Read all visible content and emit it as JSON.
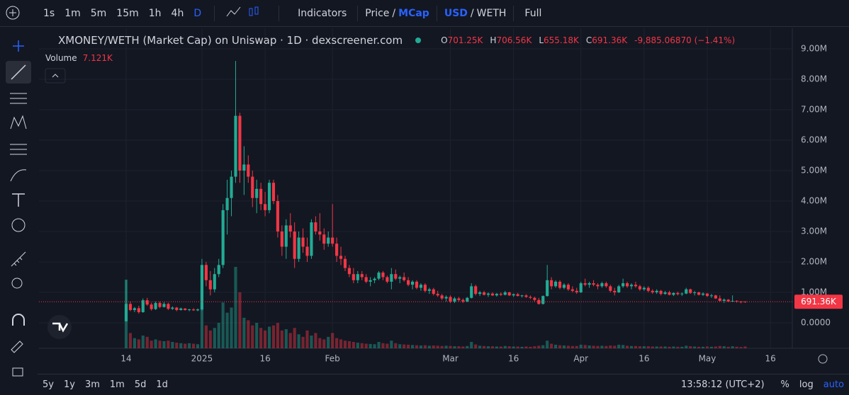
{
  "toolbar": {
    "intervals": [
      "1s",
      "1m",
      "5m",
      "15m",
      "1h",
      "4h",
      "D"
    ],
    "indicators": "Indicators",
    "price_toggle": [
      "Price",
      "/",
      "MCap"
    ],
    "currency_toggle": [
      "USD",
      "/",
      "WETH"
    ],
    "full": "Full"
  },
  "header": {
    "title": "XMONEY/WETH (Market Cap) on Uniswap · 1D · dexscreener.com",
    "ohlc": [
      {
        "k": "O",
        "v": "701.25K"
      },
      {
        "k": "H",
        "v": "706.56K"
      },
      {
        "k": "L",
        "v": "655.18K"
      },
      {
        "k": "C",
        "v": "691.36K"
      }
    ],
    "change": "-9,885.06870 (−1.41%)",
    "volume_label": "Volume",
    "volume_value": "7.121K",
    "price_tag": "691.36K"
  },
  "chart_data": {
    "type": "candlestick",
    "up_color": "#22ab94",
    "down_color": "#f23645",
    "grid": true,
    "xlim": [
      -20.7,
      158.2
    ],
    "xticks": [
      {
        "value": 0,
        "label": "14"
      },
      {
        "value": 18,
        "label": "2025"
      },
      {
        "value": 33,
        "label": "16"
      },
      {
        "value": 49,
        "label": "Feb"
      },
      {
        "value": 77,
        "label": "Mar"
      },
      {
        "value": 92,
        "label": "16"
      },
      {
        "value": 108,
        "label": "Apr"
      },
      {
        "value": 123,
        "label": "16"
      },
      {
        "value": 138,
        "label": "May"
      },
      {
        "value": 153,
        "label": "16"
      }
    ],
    "ylim": [
      -837000,
      9674000
    ],
    "yticks": [
      {
        "value": 0,
        "label": "0.0000"
      },
      {
        "value": 1000000,
        "label": "1.00M"
      },
      {
        "value": 2000000,
        "label": "2.00M"
      },
      {
        "value": 3000000,
        "label": "3.00M"
      },
      {
        "value": 4000000,
        "label": "4.00M"
      },
      {
        "value": 5000000,
        "label": "5.00M"
      },
      {
        "value": 6000000,
        "label": "6.00M"
      },
      {
        "value": 7000000,
        "label": "7.00M"
      },
      {
        "value": 8000000,
        "label": "8.00M"
      },
      {
        "value": 9000000,
        "label": "9.00M"
      }
    ],
    "ohlc": [
      [
        50000,
        1400000,
        40000,
        620000
      ],
      [
        620000,
        700000,
        380000,
        420000
      ],
      [
        420000,
        520000,
        350000,
        480000
      ],
      [
        480000,
        560000,
        300000,
        350000
      ],
      [
        350000,
        800000,
        330000,
        740000
      ],
      [
        740000,
        820000,
        560000,
        600000
      ],
      [
        600000,
        660000,
        400000,
        450000
      ],
      [
        450000,
        700000,
        420000,
        650000
      ],
      [
        650000,
        700000,
        480000,
        520000
      ],
      [
        520000,
        680000,
        500000,
        620000
      ],
      [
        620000,
        660000,
        420000,
        460000
      ],
      [
        460000,
        540000,
        420000,
        500000
      ],
      [
        500000,
        520000,
        380000,
        420000
      ],
      [
        420000,
        500000,
        400000,
        470000
      ],
      [
        470000,
        480000,
        400000,
        420000
      ],
      [
        420000,
        460000,
        380000,
        440000
      ],
      [
        440000,
        480000,
        390000,
        410000
      ],
      [
        410000,
        470000,
        380000,
        440000
      ],
      [
        440000,
        2100000,
        400000,
        1900000
      ],
      [
        1900000,
        2000000,
        1200000,
        1400000
      ],
      [
        1400000,
        1700000,
        900000,
        1100000
      ],
      [
        1100000,
        1800000,
        1000000,
        1600000
      ],
      [
        1600000,
        2100000,
        1500000,
        1900000
      ],
      [
        1900000,
        3900000,
        1800000,
        3700000
      ],
      [
        3700000,
        4700000,
        2900000,
        4100000
      ],
      [
        4100000,
        5000000,
        3500000,
        4800000
      ],
      [
        4800000,
        8600000,
        4600000,
        6800000
      ],
      [
        6800000,
        6900000,
        4600000,
        5000000
      ],
      [
        5000000,
        5800000,
        4200000,
        5200000
      ],
      [
        5200000,
        5500000,
        4600000,
        4800000
      ],
      [
        4800000,
        5000000,
        3800000,
        4100000
      ],
      [
        4100000,
        4700000,
        3600000,
        4400000
      ],
      [
        4400000,
        4600000,
        3700000,
        3900000
      ],
      [
        3900000,
        4300000,
        3500000,
        3700000
      ],
      [
        3700000,
        4700000,
        3600000,
        4600000
      ],
      [
        4600000,
        4700000,
        3900000,
        4000000
      ],
      [
        4000000,
        4200000,
        2800000,
        3000000
      ],
      [
        3000000,
        3200000,
        2200000,
        2500000
      ],
      [
        2500000,
        3400000,
        2100000,
        3200000
      ],
      [
        3200000,
        3600000,
        2800000,
        3000000
      ],
      [
        3000000,
        3300000,
        1800000,
        2100000
      ],
      [
        2100000,
        3000000,
        2000000,
        2800000
      ],
      [
        2800000,
        3100000,
        2300000,
        2500000
      ],
      [
        2500000,
        2800000,
        2000000,
        2200000
      ],
      [
        2200000,
        3400000,
        2100000,
        3300000
      ],
      [
        3300000,
        3500000,
        2900000,
        3000000
      ],
      [
        3000000,
        3600000,
        2700000,
        2900000
      ],
      [
        2900000,
        3100000,
        2400000,
        2600000
      ],
      [
        2600000,
        3000000,
        2500000,
        2800000
      ],
      [
        2800000,
        3900000,
        2500000,
        2600000
      ],
      [
        2600000,
        2800000,
        2000000,
        2200000
      ],
      [
        2200000,
        2500000,
        1900000,
        2100000
      ],
      [
        2100000,
        2200000,
        1700000,
        1800000
      ],
      [
        1800000,
        1900000,
        1500000,
        1600000
      ],
      [
        1600000,
        1800000,
        1300000,
        1400000
      ],
      [
        1400000,
        1700000,
        1300000,
        1600000
      ],
      [
        1600000,
        1700000,
        1400000,
        1500000
      ],
      [
        1500000,
        1600000,
        1300000,
        1350000
      ],
      [
        1350000,
        1500000,
        1200000,
        1400000
      ],
      [
        1400000,
        1500000,
        1300000,
        1450000
      ],
      [
        1450000,
        1700000,
        1400000,
        1650000
      ],
      [
        1650000,
        1700000,
        1400000,
        1500000
      ],
      [
        1500000,
        1550000,
        1300000,
        1350000
      ],
      [
        1350000,
        1800000,
        1100000,
        1600000
      ],
      [
        1600000,
        1750000,
        1400000,
        1450000
      ],
      [
        1450000,
        1550000,
        1300000,
        1500000
      ],
      [
        1500000,
        1650000,
        1350000,
        1400000
      ],
      [
        1400000,
        1500000,
        1200000,
        1250000
      ],
      [
        1250000,
        1400000,
        1100000,
        1350000
      ],
      [
        1350000,
        1400000,
        1100000,
        1150000
      ],
      [
        1150000,
        1300000,
        1050000,
        1250000
      ],
      [
        1250000,
        1300000,
        1000000,
        1050000
      ],
      [
        1050000,
        1150000,
        950000,
        1100000
      ],
      [
        1100000,
        1150000,
        900000,
        950000
      ],
      [
        950000,
        1050000,
        850000,
        900000
      ],
      [
        900000,
        950000,
        750000,
        800000
      ],
      [
        800000,
        900000,
        700000,
        850000
      ],
      [
        850000,
        900000,
        650000,
        700000
      ],
      [
        700000,
        850000,
        650000,
        800000
      ],
      [
        800000,
        850000,
        700000,
        750000
      ],
      [
        750000,
        800000,
        650000,
        700000
      ],
      [
        700000,
        850000,
        680000,
        820000
      ],
      [
        820000,
        1300000,
        800000,
        1200000
      ],
      [
        1200000,
        1250000,
        900000,
        950000
      ],
      [
        950000,
        1050000,
        880000,
        1000000
      ],
      [
        1000000,
        1050000,
        900000,
        920000
      ],
      [
        920000,
        1000000,
        850000,
        960000
      ],
      [
        960000,
        1000000,
        880000,
        900000
      ],
      [
        900000,
        980000,
        860000,
        950000
      ],
      [
        950000,
        1000000,
        880000,
        920000
      ],
      [
        920000,
        1050000,
        900000,
        1000000
      ],
      [
        1000000,
        1020000,
        880000,
        900000
      ],
      [
        900000,
        960000,
        850000,
        940000
      ],
      [
        940000,
        980000,
        870000,
        880000
      ],
      [
        880000,
        920000,
        830000,
        900000
      ],
      [
        900000,
        940000,
        820000,
        850000
      ],
      [
        850000,
        900000,
        780000,
        820000
      ],
      [
        820000,
        860000,
        700000,
        750000
      ],
      [
        750000,
        820000,
        600000,
        620000
      ],
      [
        620000,
        900000,
        600000,
        880000
      ],
      [
        880000,
        1900000,
        860000,
        1400000
      ],
      [
        1400000,
        1500000,
        1100000,
        1200000
      ],
      [
        1200000,
        1400000,
        1150000,
        1350000
      ],
      [
        1350000,
        1400000,
        1100000,
        1150000
      ],
      [
        1150000,
        1300000,
        1100000,
        1250000
      ],
      [
        1250000,
        1300000,
        1050000,
        1100000
      ],
      [
        1100000,
        1200000,
        1000000,
        1050000
      ],
      [
        1050000,
        1150000,
        950000,
        1000000
      ],
      [
        1000000,
        1350000,
        980000,
        1300000
      ],
      [
        1300000,
        1450000,
        1200000,
        1250000
      ],
      [
        1250000,
        1350000,
        1150000,
        1300000
      ],
      [
        1300000,
        1400000,
        1200000,
        1250000
      ],
      [
        1250000,
        1300000,
        1100000,
        1200000
      ],
      [
        1200000,
        1350000,
        1150000,
        1300000
      ],
      [
        1300000,
        1350000,
        1150000,
        1200000
      ],
      [
        1200000,
        1250000,
        1000000,
        1050000
      ],
      [
        1050000,
        1150000,
        900000,
        1000000
      ],
      [
        1000000,
        1250000,
        980000,
        1200000
      ],
      [
        1200000,
        1450000,
        1150000,
        1300000
      ],
      [
        1300000,
        1350000,
        1150000,
        1200000
      ],
      [
        1200000,
        1300000,
        1100000,
        1250000
      ],
      [
        1250000,
        1350000,
        1150000,
        1200000
      ],
      [
        1200000,
        1250000,
        1050000,
        1100000
      ],
      [
        1100000,
        1200000,
        1050000,
        1150000
      ],
      [
        1150000,
        1200000,
        1000000,
        1050000
      ],
      [
        1050000,
        1100000,
        950000,
        1000000
      ],
      [
        1000000,
        1100000,
        950000,
        1050000
      ],
      [
        1050000,
        1080000,
        900000,
        950000
      ],
      [
        950000,
        1050000,
        920000,
        1000000
      ],
      [
        1000000,
        1050000,
        900000,
        920000
      ],
      [
        920000,
        1000000,
        880000,
        980000
      ],
      [
        980000,
        1020000,
        900000,
        940000
      ],
      [
        940000,
        1000000,
        880000,
        960000
      ],
      [
        960000,
        1150000,
        940000,
        1100000
      ],
      [
        1100000,
        1120000,
        950000,
        980000
      ],
      [
        980000,
        1050000,
        900000,
        1000000
      ],
      [
        1000000,
        1020000,
        900000,
        920000
      ],
      [
        920000,
        1000000,
        880000,
        960000
      ],
      [
        960000,
        980000,
        850000,
        880000
      ],
      [
        880000,
        950000,
        820000,
        900000
      ],
      [
        900000,
        920000,
        780000,
        800000
      ],
      [
        800000,
        900000,
        700000,
        720000
      ],
      [
        720000,
        800000,
        650000,
        760000
      ],
      [
        760000,
        780000,
        680000,
        700000
      ],
      [
        700000,
        900000,
        680000,
        720000
      ],
      [
        720000,
        740000,
        660000,
        700000
      ],
      [
        700000,
        720000,
        640000,
        680000
      ],
      [
        701250,
        706560,
        655180,
        691360
      ]
    ],
    "volume": [
      270000,
      60000,
      40000,
      35000,
      50000,
      45000,
      30000,
      35000,
      30000,
      28000,
      30000,
      25000,
      22000,
      20000,
      18000,
      20000,
      18000,
      16000,
      230000,
      90000,
      70000,
      80000,
      100000,
      180000,
      140000,
      160000,
      320000,
      220000,
      120000,
      110000,
      90000,
      100000,
      80000,
      70000,
      85000,
      90000,
      100000,
      70000,
      75000,
      60000,
      80000,
      55000,
      45000,
      70000,
      50000,
      60000,
      40000,
      35000,
      45000,
      60000,
      40000,
      35000,
      30000,
      28000,
      25000,
      22000,
      20000,
      18000,
      17000,
      16000,
      25000,
      20000,
      18000,
      30000,
      20000,
      16000,
      15000,
      14000,
      13000,
      12000,
      11000,
      12000,
      10000,
      11000,
      10000,
      9000,
      10000,
      9000,
      8000,
      8000,
      7000,
      9000,
      25000,
      15000,
      10000,
      9000,
      8000,
      8000,
      7000,
      7000,
      9000,
      8000,
      7000,
      7000,
      6000,
      7000,
      6000,
      8000,
      10000,
      12000,
      30000,
      18000,
      14000,
      12000,
      11000,
      10000,
      9000,
      9000,
      14000,
      13000,
      11000,
      10000,
      9000,
      10000,
      9000,
      11000,
      10000,
      14000,
      13000,
      10000,
      9000,
      9000,
      8000,
      8000,
      8000,
      7000,
      7000,
      7000,
      7000,
      6000,
      7000,
      6000,
      6000,
      10000,
      8000,
      7000,
      6000,
      6000,
      7000,
      6000,
      7000,
      9000,
      8000,
      6000,
      8000,
      6000,
      5000,
      7121
    ]
  },
  "footer": {
    "ranges": [
      "5y",
      "1y",
      "3m",
      "1m",
      "5d",
      "1d"
    ],
    "time": "13:58:12 (UTC+2)",
    "percent": "%",
    "log": "log",
    "auto": "auto"
  }
}
